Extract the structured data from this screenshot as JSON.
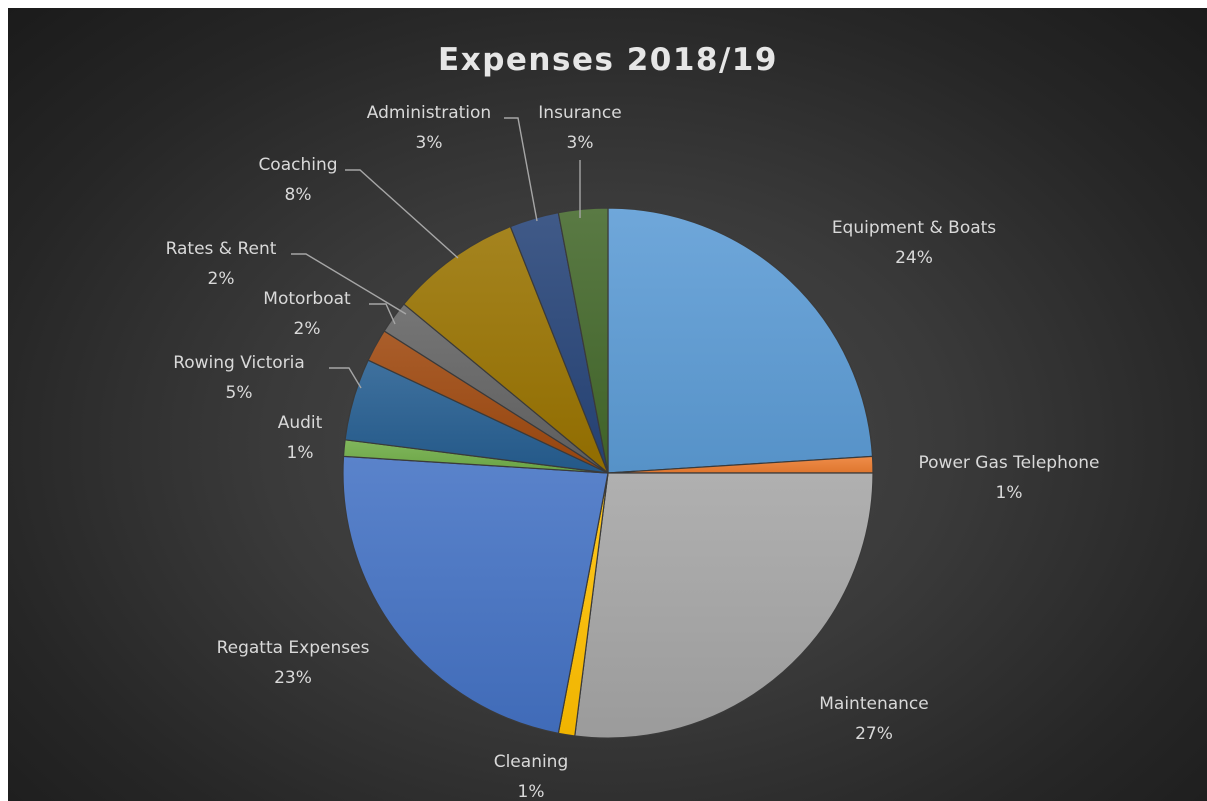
{
  "chart_data": {
    "type": "pie",
    "title": "Expenses 2018/19",
    "slices": [
      {
        "name": "Equipment & Boats",
        "value": 24,
        "label": "24%",
        "color": "#5b9bd5"
      },
      {
        "name": "Power Gas Telephone",
        "value": 1,
        "label": "1%",
        "color": "#ed7d31"
      },
      {
        "name": "Maintenance",
        "value": 27,
        "label": "27%",
        "color": "#a5a5a5"
      },
      {
        "name": "Cleaning",
        "value": 1,
        "label": "1%",
        "color": "#ffc000"
      },
      {
        "name": "Regatta Expenses",
        "value": 23,
        "label": "23%",
        "color": "#4472c4"
      },
      {
        "name": "Audit",
        "value": 1,
        "label": "1%",
        "color": "#70ad47"
      },
      {
        "name": "Rowing Victoria",
        "value": 5,
        "label": "5%",
        "color": "#255e91"
      },
      {
        "name": "Motorboat",
        "value": 2,
        "label": "2%",
        "color": "#9e480e"
      },
      {
        "name": "Rates & Rent",
        "value": 2,
        "label": "2%",
        "color": "#636363"
      },
      {
        "name": "Coaching",
        "value": 8,
        "label": "8%",
        "color": "#997300"
      },
      {
        "name": "Administration",
        "value": 3,
        "label": "3%",
        "color": "#264478"
      },
      {
        "name": "Insurance",
        "value": 3,
        "label": "3%",
        "color": "#43682b"
      }
    ],
    "legend": "none",
    "data_labels": "category name and percentage, outside end with leader lines"
  }
}
